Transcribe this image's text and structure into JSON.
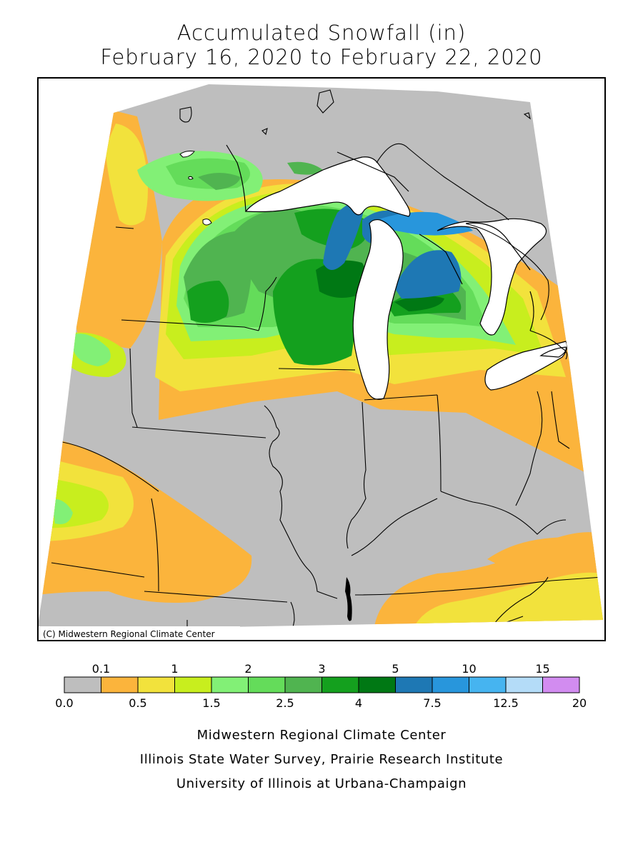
{
  "title": "Accumulated Snowfall (in)",
  "subtitle": "February 16, 2020 to February 22, 2020",
  "map_copyright": "(C) Midwestern Regional Climate Center",
  "legend": {
    "bins": [
      {
        "from": 0.0,
        "to": 0.1,
        "color": "#bebebe"
      },
      {
        "from": 0.1,
        "to": 0.5,
        "color": "#fbb43c"
      },
      {
        "from": 0.5,
        "to": 1,
        "color": "#f2e23c"
      },
      {
        "from": 1,
        "to": 1.5,
        "color": "#c8ee1e"
      },
      {
        "from": 1.5,
        "to": 2,
        "color": "#82f076"
      },
      {
        "from": 2,
        "to": 2.5,
        "color": "#64dc5a"
      },
      {
        "from": 2.5,
        "to": 3,
        "color": "#50b450"
      },
      {
        "from": 3,
        "to": 4,
        "color": "#14a01e"
      },
      {
        "from": 4,
        "to": 5,
        "color": "#007814"
      },
      {
        "from": 5,
        "to": 7.5,
        "color": "#1e78b4"
      },
      {
        "from": 7.5,
        "to": 10,
        "color": "#2896dc"
      },
      {
        "from": 10,
        "to": 12.5,
        "color": "#46b4f0"
      },
      {
        "from": 12.5,
        "to": 15,
        "color": "#b4dcf8"
      },
      {
        "from": 15,
        "to": 20,
        "color": "#d28cf0"
      }
    ],
    "top_labels": [
      "0.1",
      "1",
      "2",
      "3",
      "5",
      "10",
      "15"
    ],
    "bottom_labels": [
      "0.0",
      "0.5",
      "1.5",
      "2.5",
      "4",
      "7.5",
      "12.5",
      "20"
    ]
  },
  "credits": [
    "Midwestern Regional Climate Center",
    "Illinois State Water Survey, Prairie Research Institute",
    "University of Illinois at Urbana-Champaign"
  ]
}
